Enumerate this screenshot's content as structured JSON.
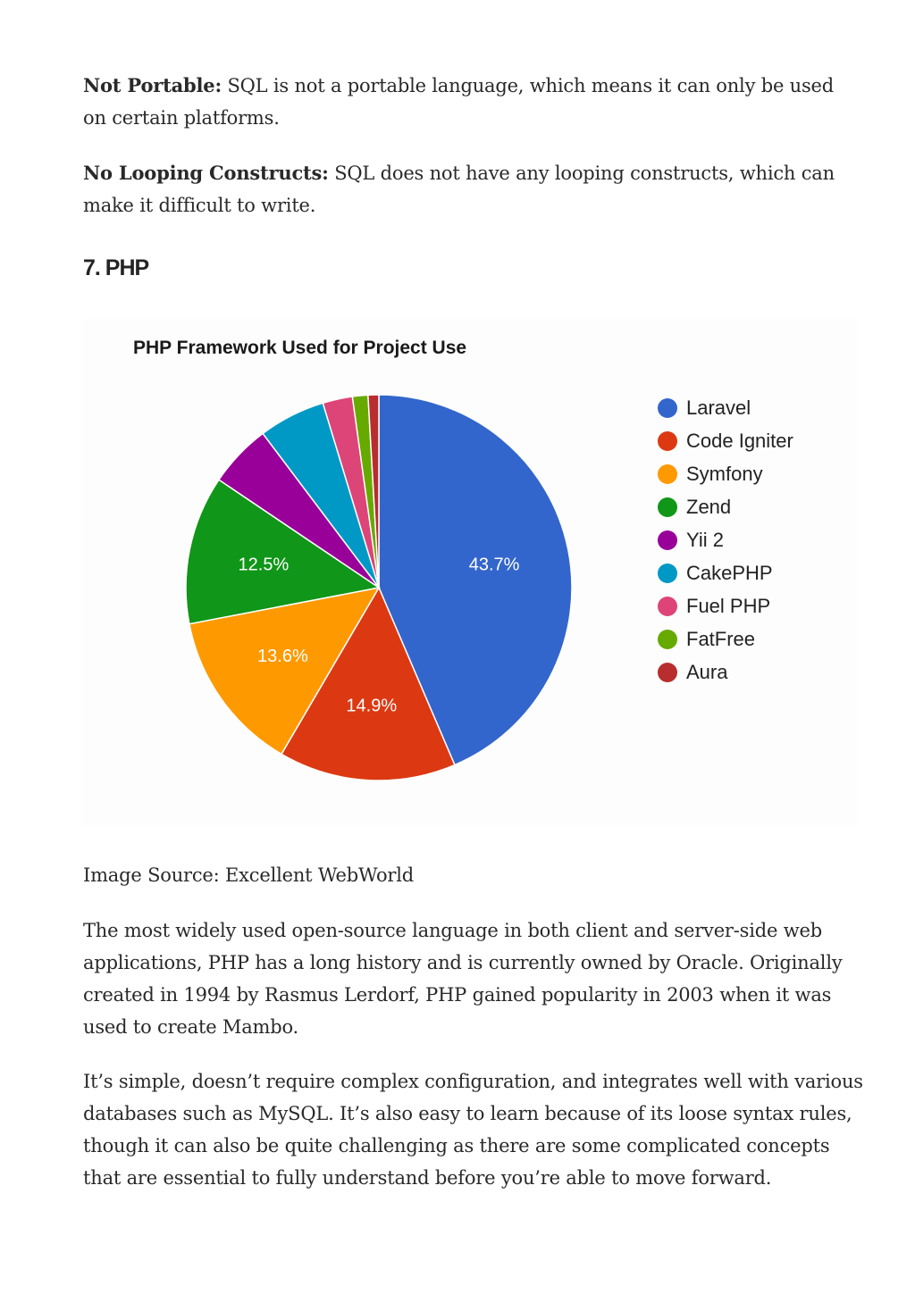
{
  "paragraphs": {
    "not_portable": {
      "label": "Not Portable:",
      "text": " SQL is not a portable language, which means it can only be used on certain platforms."
    },
    "no_looping": {
      "label": "No Looping Constructs:",
      "text": " SQL does not have any looping constructs, which can make it difficult to write."
    },
    "php_intro": "The most widely used open-source language in both client and server-side web applications, PHP has a long history and is currently owned by Oracle. Originally created in 1994 by Rasmus Lerdorf, PHP gained popularity in 2003 when it was used to create Mambo.",
    "php_details": "It’s simple, doesn’t require complex configuration, and integrates well with various databases such as MySQL. It’s also easy to learn because of its loose syntax rules, though it can also be quite challenging as there are some complicated concepts that are essential to fully understand before you’re able to move forward."
  },
  "heading": "7. PHP",
  "caption": "Image Source: Excellent WebWorld",
  "chart_data": {
    "type": "pie",
    "title": "PHP Framework Used for Project Use",
    "legend_position": "right",
    "categories": [
      "Laravel",
      "Code Igniter",
      "Symfony",
      "Zend",
      "Yii 2",
      "CakePHP",
      "Fuel PHP",
      "FatFree",
      "Aura"
    ],
    "values": [
      43.7,
      14.9,
      13.6,
      12.5,
      5.3,
      5.6,
      2.5,
      1.3,
      0.9
    ],
    "data_labels": [
      "43.7%",
      "14.9%",
      "13.6%",
      "12.5%",
      "",
      "",
      "",
      "",
      ""
    ],
    "colors": [
      "#3366cc",
      "#dc3912",
      "#ff9900",
      "#109618",
      "#990099",
      "#0099c6",
      "#dd4477",
      "#66aa00",
      "#b82e2e"
    ]
  }
}
